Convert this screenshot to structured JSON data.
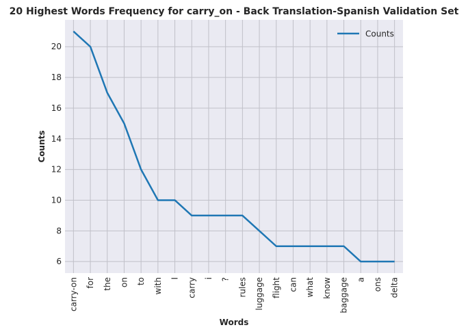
{
  "chart_data": {
    "type": "line",
    "title": "20 Highest Words Frequency for carry_on - Back Translation-Spanish Validation Set",
    "xlabel": "Words",
    "ylabel": "Counts",
    "categories": [
      "carry-on",
      "for",
      "the",
      "on",
      "to",
      "with",
      "I",
      "carry",
      "i",
      "?",
      "rules",
      "luggage",
      "flight",
      "can",
      "what",
      "know",
      "baggage",
      "a",
      "ons",
      "delta"
    ],
    "series": [
      {
        "name": "Counts",
        "values": [
          21,
          20,
          17,
          15,
          12,
          10,
          10,
          9,
          9,
          9,
          9,
          8,
          7,
          7,
          7,
          7,
          7,
          6,
          6,
          6
        ]
      }
    ],
    "ylim": [
      5.25,
      21.75
    ],
    "yticks": [
      6,
      8,
      10,
      12,
      14,
      16,
      18,
      20
    ],
    "grid": true,
    "legend": "top-right",
    "colors": {
      "line": "#1f77b4",
      "background": "#eaeaf2",
      "grid": "#c0c0c8",
      "text": "#262626"
    }
  }
}
